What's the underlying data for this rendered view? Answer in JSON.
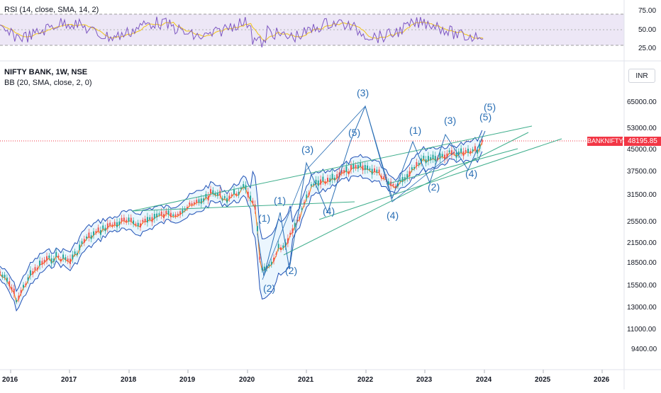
{
  "rsi_pane": {
    "indicator_label": "RSI (14, close, SMA, 14, 2)",
    "levels": [
      "75.00",
      "50.00",
      "25.00"
    ],
    "colors": {
      "rsi": "#7e57c2",
      "sma": "#f0c419",
      "band": "#ede7f6"
    }
  },
  "main_pane": {
    "symbol_label": "NIFTY BANK, 1W, NSE",
    "bb_label": "BB (20, SMA, close, 2, 0)",
    "currency": "INR",
    "price_ticks": [
      "65000.00",
      "53000.00",
      "45000.00",
      "37500.00",
      "31500.00",
      "25500.00",
      "21500.00",
      "18500.00",
      "15500.00",
      "13000.00",
      "11000.00",
      "9400.00"
    ],
    "last_price": {
      "symbol": "BANKNIFTY",
      "value": "48195.85",
      "color": "#f23645"
    },
    "time_labels": [
      "2016",
      "2017",
      "2018",
      "2019",
      "2020",
      "2021",
      "2022",
      "2023",
      "2024",
      "2025",
      "2026"
    ],
    "colors": {
      "up": "#26a69a",
      "down": "#ef5350",
      "bb_band": "#1e4fb5",
      "bb_fill": "#e3f2fd",
      "bb_basis": "#ff6d00",
      "sma": "#f7a600",
      "trend": "#3fae8c",
      "wave": "#2a6fb5"
    },
    "wave_labels": [
      {
        "text": "(1)"
      },
      {
        "text": "(2)"
      },
      {
        "text": "(1)"
      },
      {
        "text": "(2)"
      },
      {
        "text": "(3)"
      },
      {
        "text": "(5)"
      },
      {
        "text": "(3)"
      },
      {
        "text": "(4)"
      },
      {
        "text": "(4)"
      },
      {
        "text": "(1)"
      },
      {
        "text": "(2)"
      },
      {
        "text": "(3)"
      },
      {
        "text": "(4)"
      },
      {
        "text": "(5)"
      },
      {
        "text": "(5)"
      }
    ]
  }
}
